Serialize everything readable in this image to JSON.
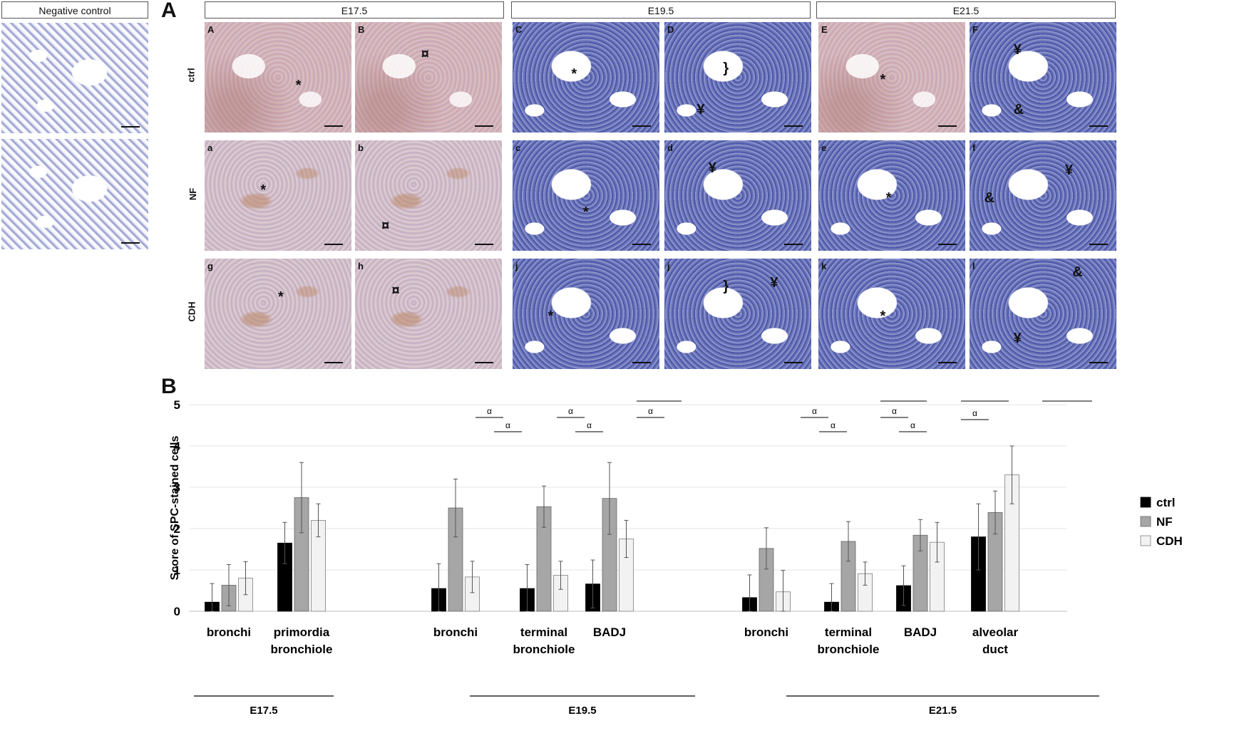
{
  "panel_a": {
    "letter": "A",
    "negative_control_label": "Negative control",
    "stage_headers": [
      "E17.5",
      "E19.5",
      "E21.5"
    ],
    "row_labels": [
      "ctrl",
      "NF",
      "CDH"
    ],
    "tile_labels": [
      [
        "A",
        "B",
        "C",
        "D",
        "E",
        "F"
      ],
      [
        "a",
        "b",
        "c",
        "d",
        "e",
        "f"
      ],
      [
        "g",
        "h",
        "j",
        "j",
        "k",
        "l"
      ]
    ],
    "symbols": {
      "airway": "*",
      "bronchiole": "¥",
      "alveolus": "&",
      "primordia": "¤",
      "junction": "}"
    }
  },
  "panel_b": {
    "letter": "B"
  },
  "chart_data": {
    "type": "bar",
    "ylabel": "Score of SPC-stained cells",
    "ylim": [
      0,
      5
    ],
    "yticks": [
      "0",
      "1",
      "2",
      "3",
      "4",
      "5"
    ],
    "legend": [
      "ctrl",
      "NF",
      "CDH"
    ],
    "legend_position": "right",
    "series_colors": [
      "#000000",
      "#a6a6a6",
      "#f2f2f2"
    ],
    "groups": [
      {
        "stage": "E17.5",
        "categories": [
          {
            "label": [
              "bronchi"
            ],
            "values": [
              0.22,
              0.63,
              0.8
            ],
            "errors": [
              0.45,
              0.5,
              0.4
            ]
          },
          {
            "label": [
              "primordia",
              "bronchiole"
            ],
            "values": [
              1.65,
              2.75,
              2.2
            ],
            "errors": [
              0.5,
              0.85,
              0.4
            ]
          }
        ]
      },
      {
        "stage": "E19.5",
        "categories": [
          {
            "label": [
              "bronchi"
            ],
            "values": [
              0.55,
              2.5,
              0.83
            ],
            "errors": [
              0.6,
              0.7,
              0.38
            ]
          },
          {
            "label": [
              "terminal",
              "bronchiole"
            ],
            "values": [
              0.55,
              2.53,
              0.87
            ],
            "errors": [
              0.58,
              0.5,
              0.34
            ]
          },
          {
            "label": [
              "BADJ"
            ],
            "values": [
              0.66,
              2.73,
              1.75
            ],
            "errors": [
              0.58,
              0.87,
              0.45
            ]
          }
        ]
      },
      {
        "stage": "E21.5",
        "categories": [
          {
            "label": [
              "bronchi"
            ],
            "values": [
              0.33,
              1.52,
              0.47
            ],
            "errors": [
              0.55,
              0.5,
              0.52
            ]
          },
          {
            "label": [
              "terminal",
              "bronchiole"
            ],
            "values": [
              0.22,
              1.69,
              0.91
            ],
            "errors": [
              0.45,
              0.48,
              0.28
            ]
          },
          {
            "label": [
              "BADJ"
            ],
            "values": [
              0.62,
              1.84,
              1.67
            ],
            "errors": [
              0.48,
              0.38,
              0.48
            ]
          },
          {
            "label": [
              "alveolar",
              "duct"
            ],
            "values": [
              1.8,
              2.39,
              3.3
            ],
            "errors": [
              0.8,
              0.52,
              0.7
            ]
          }
        ]
      }
    ],
    "significance_symbol": "α"
  }
}
